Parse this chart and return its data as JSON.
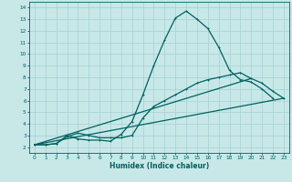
{
  "background_color": "#c8e8e8",
  "grid_color": "#aad4d4",
  "line_color": "#006060",
  "xlabel": "Humidex (Indice chaleur)",
  "xlim": [
    -0.5,
    23.5
  ],
  "ylim": [
    1.5,
    14.5
  ],
  "xticks": [
    0,
    1,
    2,
    3,
    4,
    5,
    6,
    7,
    8,
    9,
    10,
    11,
    12,
    13,
    14,
    15,
    16,
    17,
    18,
    19,
    20,
    21,
    22,
    23
  ],
  "yticks": [
    2,
    3,
    4,
    5,
    6,
    7,
    8,
    9,
    10,
    11,
    12,
    13,
    14
  ],
  "curve1_x": [
    0,
    1,
    2,
    3,
    4,
    5,
    6,
    7,
    8,
    9,
    10,
    11,
    12,
    13,
    14,
    15,
    16,
    17,
    18,
    19,
    20,
    21,
    22
  ],
  "curve1_y": [
    2.2,
    2.2,
    2.3,
    3.0,
    2.7,
    2.6,
    2.6,
    2.5,
    3.1,
    4.2,
    6.5,
    9.0,
    11.2,
    13.1,
    13.7,
    13.0,
    12.2,
    10.6,
    8.6,
    7.8,
    7.6,
    7.0,
    6.2
  ],
  "curve2_x": [
    0,
    1,
    2,
    3,
    4,
    5,
    6,
    7,
    8,
    9,
    10,
    11,
    12,
    13,
    14,
    15,
    16,
    17,
    18,
    19,
    20,
    21,
    22,
    23
  ],
  "curve2_y": [
    2.2,
    2.2,
    2.3,
    2.9,
    3.2,
    3.0,
    2.8,
    2.8,
    2.8,
    3.0,
    4.5,
    5.5,
    6.0,
    6.5,
    7.0,
    7.5,
    7.8,
    8.0,
    8.2,
    8.4,
    7.9,
    7.5,
    6.8,
    6.2
  ],
  "curve3_x": [
    0,
    23
  ],
  "curve3_y": [
    2.2,
    6.2
  ],
  "curve4_x": [
    0,
    20
  ],
  "curve4_y": [
    2.2,
    7.9
  ]
}
